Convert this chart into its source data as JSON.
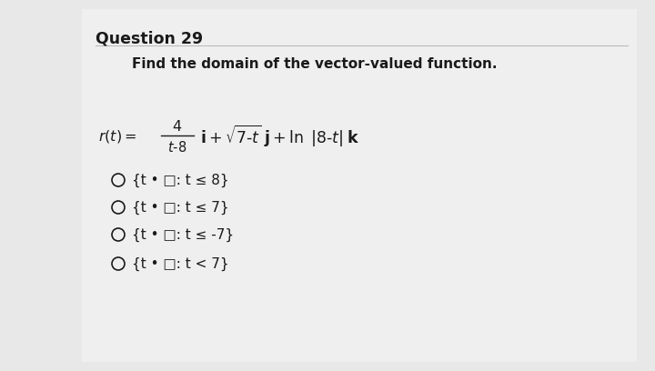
{
  "title": "Question 29",
  "subtitle": "Find the domain of the vector-valued function.",
  "bg_color": "#e8e8e8",
  "panel_color": "#f0f0f0",
  "text_color": "#1a1a1a",
  "title_fontsize": 12.5,
  "subtitle_fontsize": 11,
  "func_fontsize": 11.5,
  "option_fontsize": 11,
  "options": [
    "{t • □: t ≤ 8}",
    "{t • □: t ≤ 7}",
    "{t • □: t ≤ -7}",
    "{t • □: t < 7}"
  ]
}
